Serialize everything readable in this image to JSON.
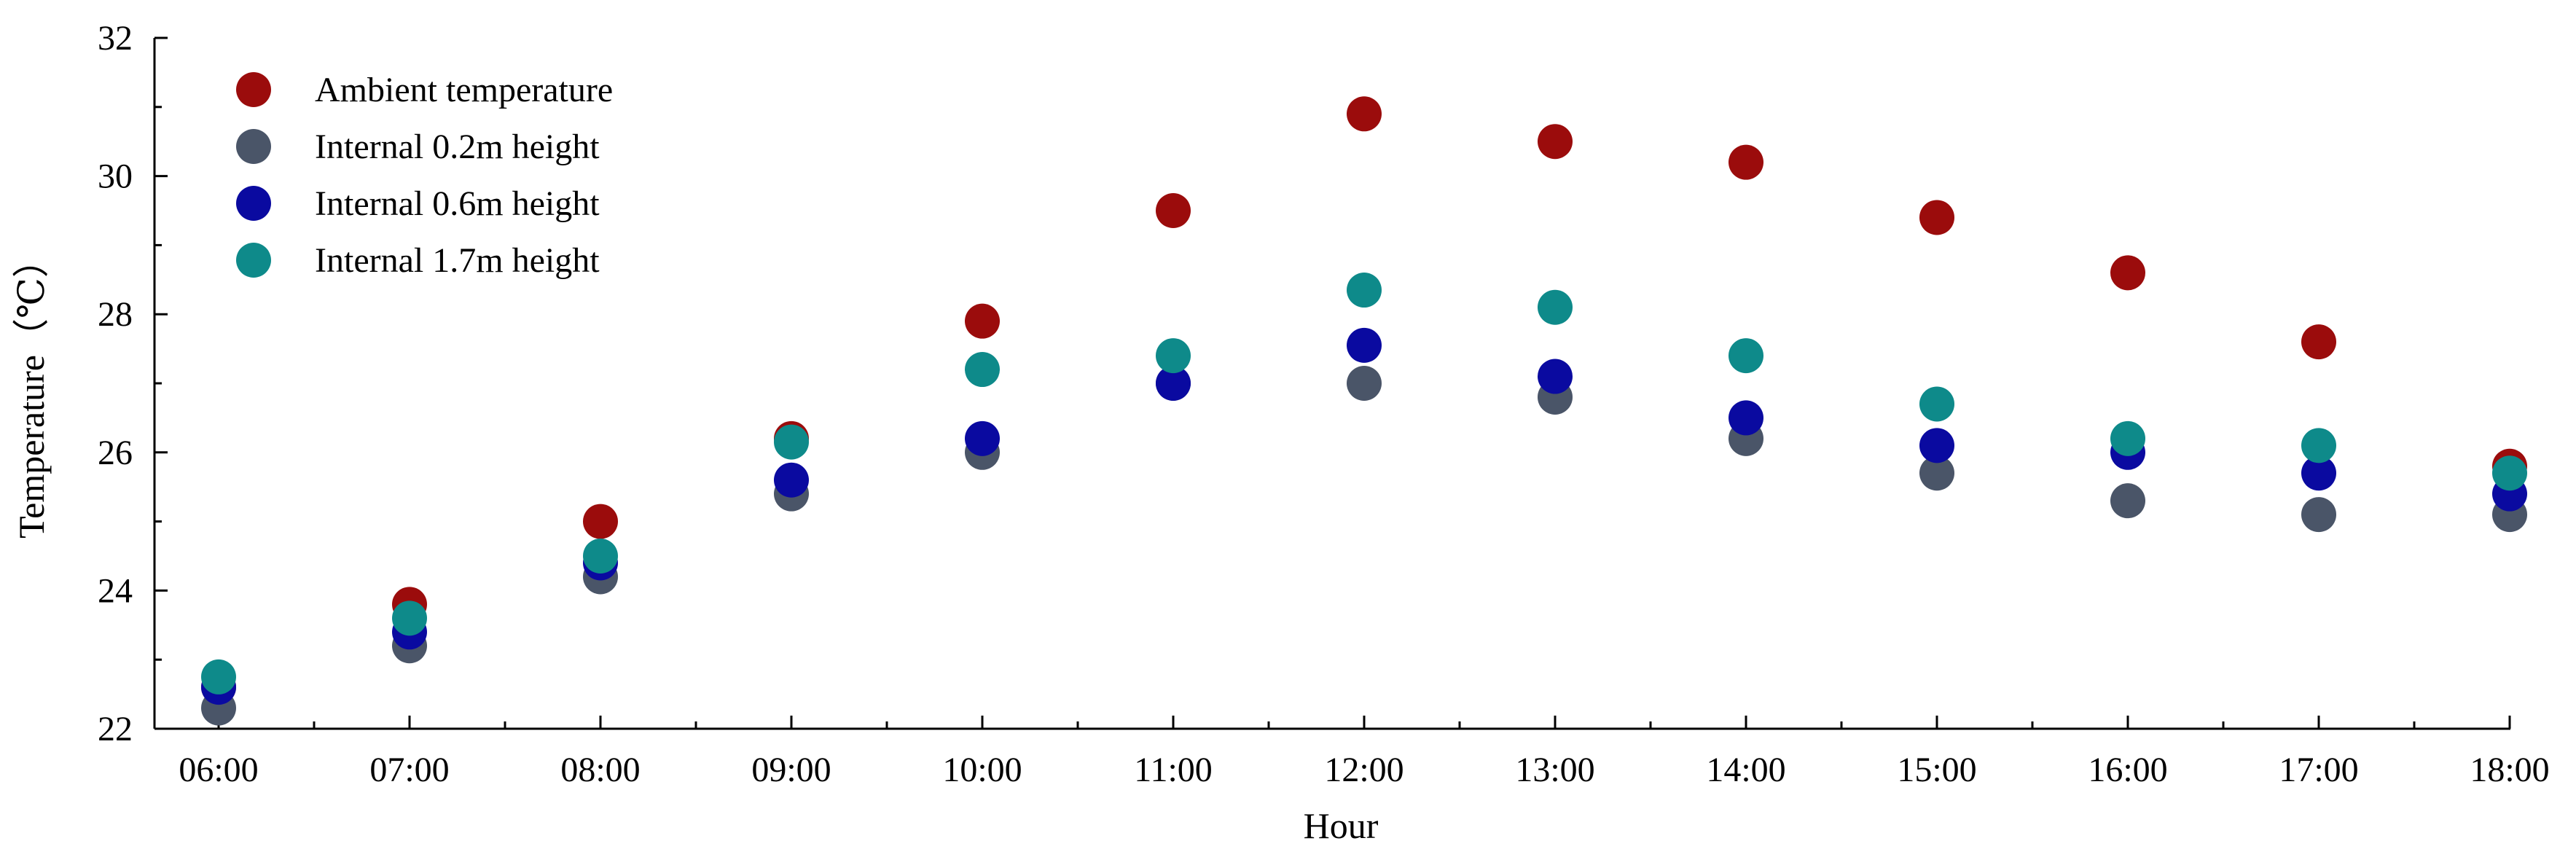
{
  "chart_data": {
    "type": "scatter",
    "title": "",
    "xlabel": "Hour",
    "ylabel": "Temperature（℃）",
    "categories": [
      "06:00",
      "07:00",
      "08:00",
      "09:00",
      "10:00",
      "11:00",
      "12:00",
      "13:00",
      "14:00",
      "15:00",
      "16:00",
      "17:00",
      "18:00"
    ],
    "ylim": [
      22,
      32
    ],
    "yticks": [
      22,
      24,
      26,
      28,
      30,
      32
    ],
    "y_minor_step": 1,
    "grid": false,
    "legend_position": "top-left",
    "series": [
      {
        "name": "Ambient temperature",
        "color": "#9b0c0c",
        "values": [
          22.6,
          23.8,
          25.0,
          26.2,
          27.9,
          29.5,
          30.9,
          30.5,
          30.2,
          29.4,
          28.6,
          27.6,
          25.8
        ]
      },
      {
        "name": "Internal 0.2m height",
        "color": "#4a5568",
        "values": [
          22.3,
          23.2,
          24.2,
          25.4,
          26.0,
          27.0,
          27.0,
          26.8,
          26.2,
          25.7,
          25.3,
          25.1,
          25.1
        ]
      },
      {
        "name": "Internal 0.6m height",
        "color": "#0a0aa0",
        "values": [
          22.6,
          23.4,
          24.4,
          25.6,
          26.2,
          27.0,
          27.55,
          27.1,
          26.5,
          26.1,
          26.0,
          25.7,
          25.4
        ]
      },
      {
        "name": "Internal 1.7m height",
        "color": "#0e8a8a",
        "values": [
          22.75,
          23.6,
          24.5,
          26.15,
          27.2,
          27.4,
          28.35,
          28.1,
          27.4,
          26.7,
          26.2,
          26.1,
          25.7
        ]
      }
    ]
  }
}
